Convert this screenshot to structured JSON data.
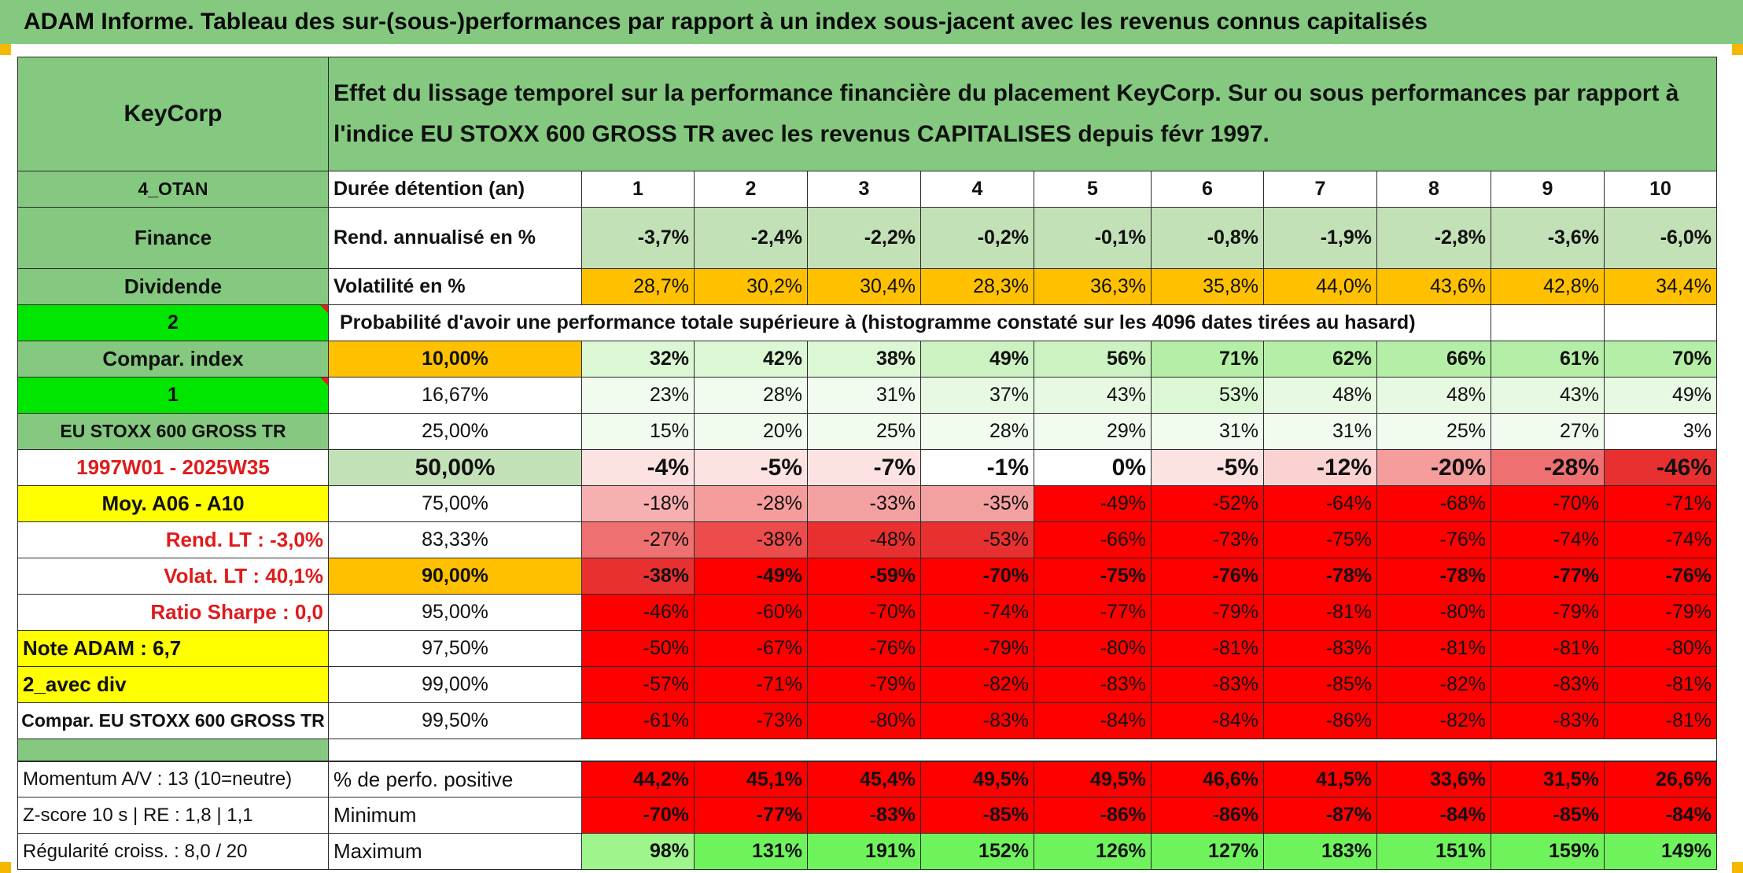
{
  "banner": "ADAM Informe. Tableau des sur-(sous-)performances par rapport à un index sous-jacent avec les revenus connus capitalisés",
  "header": {
    "company": "KeyCorp",
    "title": "Effet du lissage temporel sur la performance financière du placement KeyCorp. Sur ou sous performances par rapport à l'indice EU STOXX 600 GROSS TR avec les revenus CAPITALISES depuis févr 1997."
  },
  "left": {
    "code": "4_OTAN",
    "sector": "Finance",
    "dividend": "Dividende",
    "two": "2",
    "compar_index": "Compar. index",
    "one": "1",
    "index_name": "EU STOXX 600 GROSS TR",
    "period": "1997W01 - 2025W35",
    "moy": "Moy. A06 - A10",
    "rend_lt": "Rend. LT :    -3,0%",
    "volat_lt": "Volat. LT :   40,1%",
    "sharpe": "Ratio Sharpe :    0,0",
    "note": "Note ADAM : 6,7",
    "avec_div": "2_avec div",
    "compar_full": "Compar. EU STOXX 600 GROSS TR",
    "momentum": "Momentum A/V : 13 (10=neutre)",
    "zscore": "Z-score 10 s | RE : 1,8 | 1,1",
    "regularite": "Régularité croiss. : 8,0 / 20"
  },
  "labels": {
    "duree": "Durée détention (an)",
    "rend": "Rend. annualisé en %",
    "volat": "Volatilité en %",
    "proba": "Probabilité d'avoir une performance totale supérieure à (histogramme constaté sur les 4096 dates tirées au hasard)",
    "pct_pos": "% de perfo. positive",
    "minimum": "Minimum",
    "maximum": "Maximum"
  },
  "years": [
    "1",
    "2",
    "3",
    "4",
    "5",
    "6",
    "7",
    "8",
    "9",
    "10"
  ],
  "rend": [
    "-3,7%",
    "-2,4%",
    "-2,2%",
    "-0,2%",
    "-0,1%",
    "-0,8%",
    "-1,9%",
    "-2,8%",
    "-3,6%",
    "-6,0%"
  ],
  "volat": [
    "28,7%",
    "30,2%",
    "30,4%",
    "28,3%",
    "36,3%",
    "35,8%",
    "44,0%",
    "43,6%",
    "42,8%",
    "34,4%"
  ],
  "quantiles": [
    {
      "label": "10,00%",
      "values": [
        "32%",
        "42%",
        "38%",
        "49%",
        "56%",
        "71%",
        "62%",
        "66%",
        "61%",
        "70%"
      ]
    },
    {
      "label": "16,67%",
      "values": [
        "23%",
        "28%",
        "31%",
        "37%",
        "43%",
        "53%",
        "48%",
        "48%",
        "43%",
        "49%"
      ]
    },
    {
      "label": "25,00%",
      "values": [
        "15%",
        "20%",
        "25%",
        "28%",
        "29%",
        "31%",
        "31%",
        "25%",
        "27%",
        "3%"
      ]
    },
    {
      "label": "50,00%",
      "values": [
        "-4%",
        "-5%",
        "-7%",
        "-1%",
        "0%",
        "-5%",
        "-12%",
        "-20%",
        "-28%",
        "-46%"
      ]
    },
    {
      "label": "75,00%",
      "values": [
        "-18%",
        "-28%",
        "-33%",
        "-35%",
        "-49%",
        "-52%",
        "-64%",
        "-68%",
        "-70%",
        "-71%"
      ]
    },
    {
      "label": "83,33%",
      "values": [
        "-27%",
        "-38%",
        "-48%",
        "-53%",
        "-66%",
        "-73%",
        "-75%",
        "-76%",
        "-74%",
        "-74%"
      ]
    },
    {
      "label": "90,00%",
      "values": [
        "-38%",
        "-49%",
        "-59%",
        "-70%",
        "-75%",
        "-76%",
        "-78%",
        "-78%",
        "-77%",
        "-76%"
      ]
    },
    {
      "label": "95,00%",
      "values": [
        "-46%",
        "-60%",
        "-70%",
        "-74%",
        "-77%",
        "-79%",
        "-81%",
        "-80%",
        "-79%",
        "-79%"
      ]
    },
    {
      "label": "97,50%",
      "values": [
        "-50%",
        "-67%",
        "-76%",
        "-79%",
        "-80%",
        "-81%",
        "-83%",
        "-81%",
        "-81%",
        "-80%"
      ]
    },
    {
      "label": "99,00%",
      "values": [
        "-57%",
        "-71%",
        "-79%",
        "-82%",
        "-83%",
        "-83%",
        "-85%",
        "-82%",
        "-83%",
        "-81%"
      ]
    },
    {
      "label": "99,50%",
      "values": [
        "-61%",
        "-73%",
        "-80%",
        "-83%",
        "-84%",
        "-84%",
        "-86%",
        "-82%",
        "-83%",
        "-81%"
      ]
    }
  ],
  "pct_pos": [
    "44,2%",
    "45,1%",
    "45,4%",
    "49,5%",
    "49,5%",
    "46,6%",
    "41,5%",
    "33,6%",
    "31,5%",
    "26,6%"
  ],
  "minimum": [
    "-70%",
    "-77%",
    "-83%",
    "-85%",
    "-86%",
    "-86%",
    "-87%",
    "-84%",
    "-85%",
    "-84%"
  ],
  "maximum": [
    "98%",
    "131%",
    "191%",
    "152%",
    "126%",
    "127%",
    "183%",
    "151%",
    "159%",
    "149%"
  ]
}
